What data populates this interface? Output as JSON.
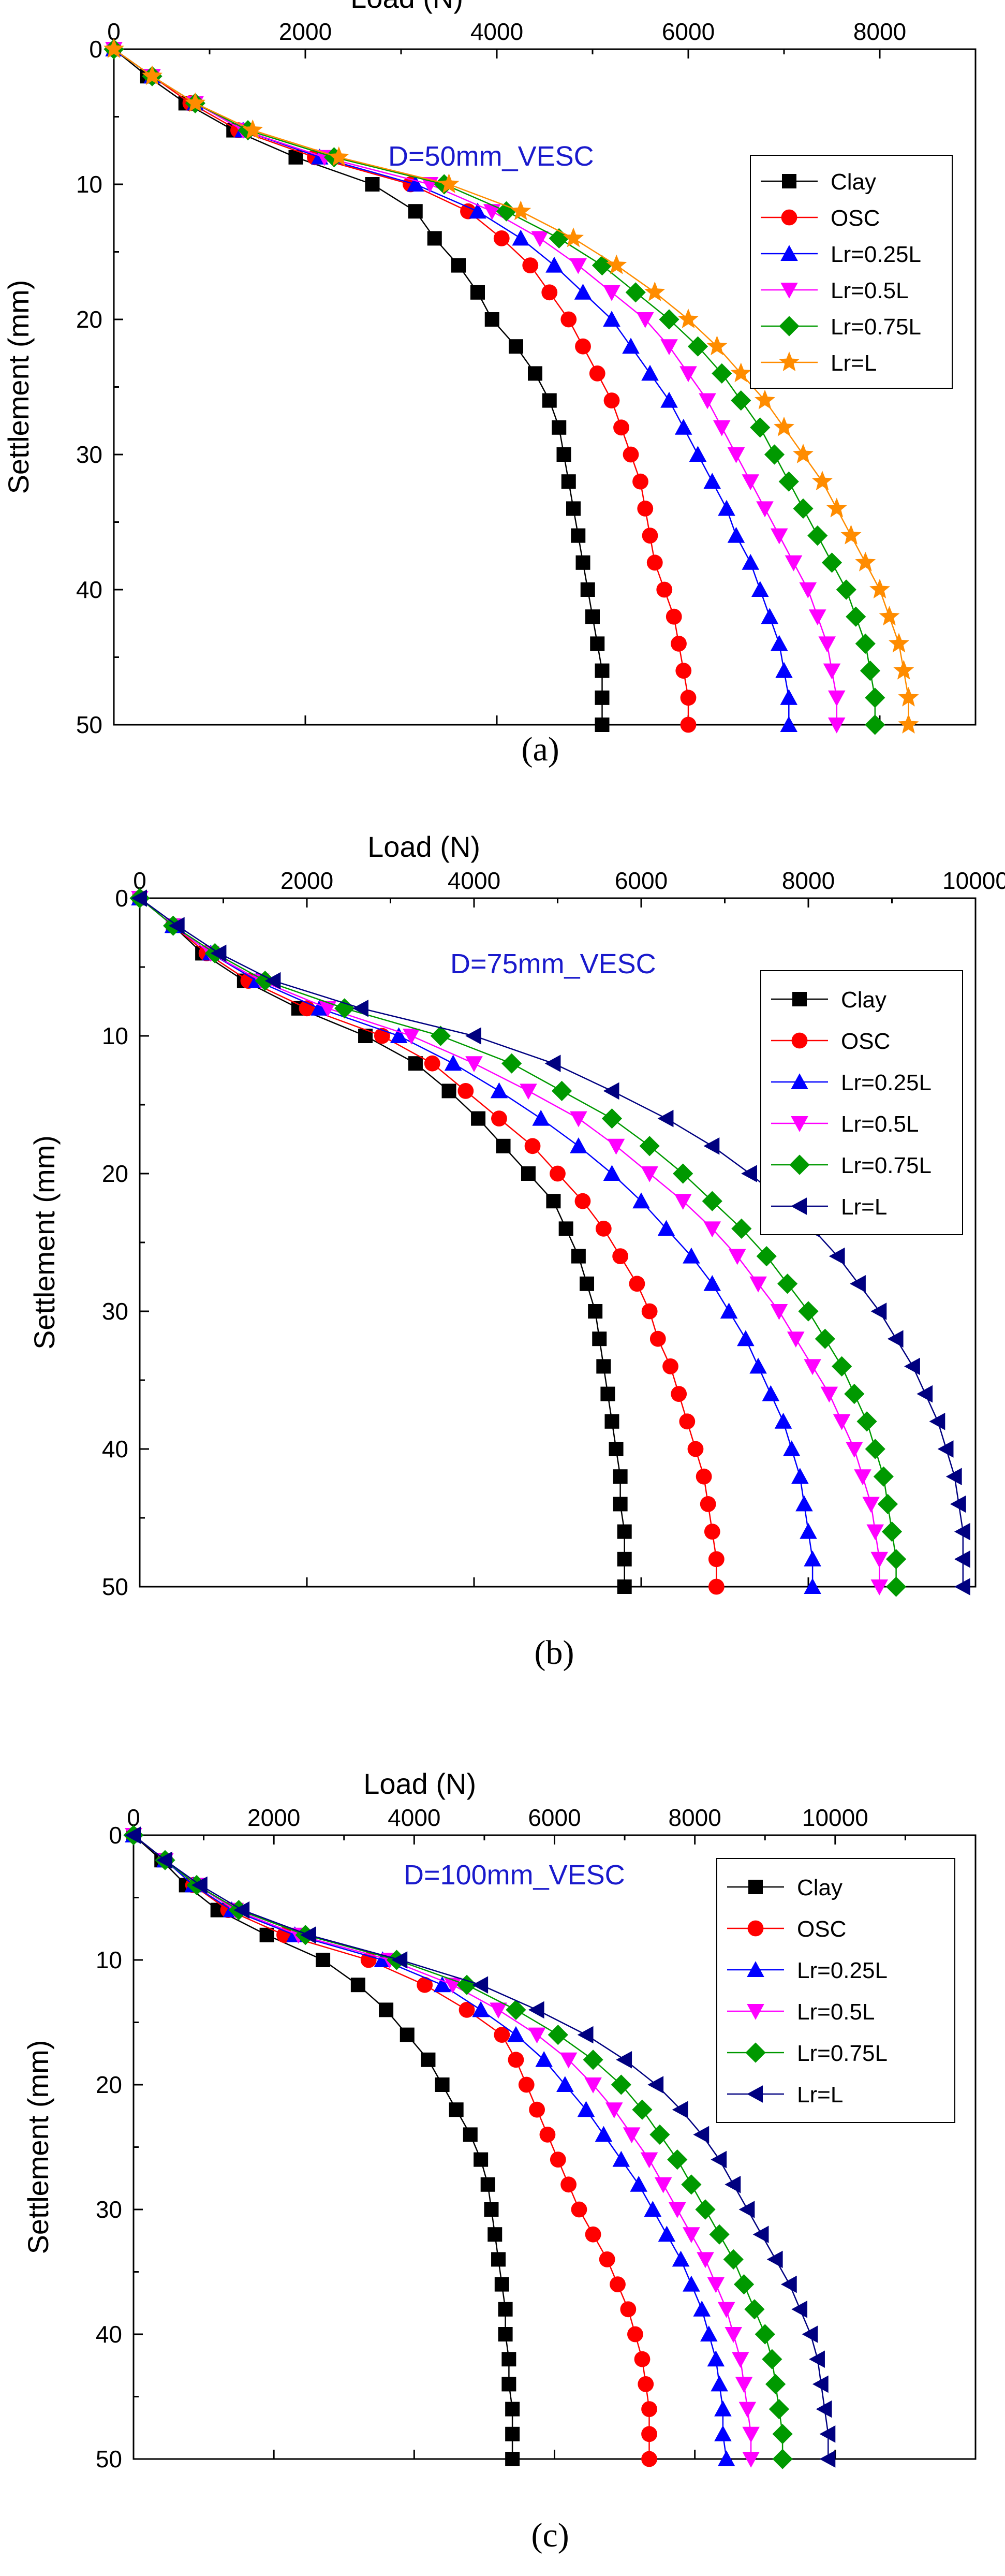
{
  "chart_data": [
    {
      "type": "line",
      "panel_label": "(a)",
      "xlabel": "Load (N)",
      "ylabel": "Settlement (mm)",
      "annotation": "D=50mm_VESC",
      "xlim": [
        0,
        9000
      ],
      "ylim": [
        0,
        50
      ],
      "xticks": [
        0,
        2000,
        4000,
        6000,
        8000
      ],
      "yticks": [
        0,
        10,
        20,
        30,
        40,
        50
      ],
      "x_axis_position": "top",
      "y_inverted": true,
      "legend_position": "top-right",
      "y": [
        0,
        2,
        4,
        6,
        8,
        10,
        12,
        14,
        16,
        18,
        20,
        22,
        24,
        26,
        28,
        30,
        32,
        34,
        36,
        38,
        40,
        42,
        44,
        46,
        48,
        50
      ],
      "series": [
        {
          "name": "Clay",
          "color": "#000000",
          "marker": "square",
          "x": [
            0,
            350,
            750,
            1250,
            1900,
            2700,
            3150,
            3350,
            3600,
            3800,
            3950,
            4200,
            4400,
            4550,
            4650,
            4700,
            4750,
            4800,
            4850,
            4900,
            4950,
            5000,
            5050,
            5100,
            5100,
            5100
          ]
        },
        {
          "name": "OSC",
          "color": "#ff0000",
          "marker": "circle",
          "x": [
            0,
            400,
            800,
            1300,
            2100,
            3100,
            3700,
            4050,
            4350,
            4550,
            4750,
            4900,
            5050,
            5200,
            5300,
            5400,
            5500,
            5550,
            5600,
            5650,
            5750,
            5850,
            5900,
            5950,
            6000,
            6000
          ]
        },
        {
          "name": "Lr=0.25L",
          "color": "#0000ff",
          "marker": "triangle-up",
          "x": [
            0,
            400,
            850,
            1350,
            2150,
            3150,
            3800,
            4250,
            4600,
            4900,
            5200,
            5400,
            5600,
            5800,
            5950,
            6100,
            6250,
            6400,
            6500,
            6650,
            6750,
            6850,
            6950,
            7000,
            7050,
            7050
          ]
        },
        {
          "name": "Lr=0.5L",
          "color": "#ff00ff",
          "marker": "triangle-down",
          "x": [
            0,
            400,
            850,
            1350,
            2200,
            3300,
            3950,
            4450,
            4850,
            5200,
            5550,
            5800,
            6000,
            6200,
            6350,
            6500,
            6650,
            6800,
            6950,
            7100,
            7250,
            7350,
            7450,
            7500,
            7550,
            7550
          ]
        },
        {
          "name": "Lr=0.75L",
          "color": "#009900",
          "marker": "diamond",
          "x": [
            0,
            400,
            850,
            1400,
            2300,
            3450,
            4100,
            4650,
            5100,
            5450,
            5800,
            6100,
            6350,
            6550,
            6750,
            6900,
            7050,
            7200,
            7350,
            7500,
            7650,
            7750,
            7850,
            7900,
            7950,
            7950
          ]
        },
        {
          "name": "Lr=L",
          "color": "#ff8c00",
          "marker": "star",
          "x": [
            0,
            400,
            850,
            1450,
            2350,
            3500,
            4250,
            4800,
            5250,
            5650,
            6000,
            6300,
            6550,
            6800,
            7000,
            7200,
            7400,
            7550,
            7700,
            7850,
            8000,
            8100,
            8200,
            8250,
            8300,
            8300
          ]
        }
      ]
    },
    {
      "type": "line",
      "panel_label": "(b)",
      "xlabel": "Load (N)",
      "ylabel": "Settlement (mm)",
      "annotation": "D=75mm_VESC",
      "xlim": [
        0,
        10000
      ],
      "ylim": [
        0,
        50
      ],
      "xticks": [
        0,
        2000,
        4000,
        6000,
        8000,
        10000
      ],
      "yticks": [
        0,
        10,
        20,
        30,
        40,
        50
      ],
      "x_axis_position": "top",
      "y_inverted": true,
      "legend_position": "top-right",
      "y": [
        0,
        2,
        4,
        6,
        8,
        10,
        12,
        14,
        16,
        18,
        20,
        22,
        24,
        26,
        28,
        30,
        32,
        34,
        36,
        38,
        40,
        42,
        44,
        46,
        48,
        50
      ],
      "series": [
        {
          "name": "Clay",
          "color": "#000000",
          "marker": "square",
          "x": [
            0,
            400,
            750,
            1250,
            1900,
            2700,
            3300,
            3700,
            4050,
            4350,
            4650,
            4950,
            5100,
            5250,
            5350,
            5450,
            5500,
            5550,
            5600,
            5650,
            5700,
            5750,
            5750,
            5800,
            5800,
            5800
          ]
        },
        {
          "name": "OSC",
          "color": "#ff0000",
          "marker": "circle",
          "x": [
            0,
            400,
            800,
            1300,
            2000,
            2900,
            3500,
            3900,
            4300,
            4700,
            5000,
            5300,
            5550,
            5750,
            5950,
            6100,
            6200,
            6350,
            6450,
            6550,
            6650,
            6750,
            6800,
            6850,
            6900,
            6900
          ]
        },
        {
          "name": "Lr=0.25L",
          "color": "#0000ff",
          "marker": "triangle-up",
          "x": [
            0,
            400,
            850,
            1400,
            2150,
            3100,
            3750,
            4300,
            4800,
            5250,
            5650,
            6000,
            6300,
            6600,
            6850,
            7050,
            7250,
            7400,
            7550,
            7700,
            7800,
            7900,
            7950,
            8000,
            8050,
            8050
          ]
        },
        {
          "name": "Lr=0.5L",
          "color": "#ff00ff",
          "marker": "triangle-down",
          "x": [
            0,
            400,
            850,
            1450,
            2250,
            3250,
            4000,
            4650,
            5250,
            5700,
            6100,
            6500,
            6850,
            7150,
            7400,
            7650,
            7850,
            8050,
            8250,
            8400,
            8550,
            8650,
            8750,
            8800,
            8850,
            8850
          ]
        },
        {
          "name": "Lr=0.75L",
          "color": "#009900",
          "marker": "diamond",
          "x": [
            0,
            400,
            900,
            1500,
            2450,
            3600,
            4450,
            5050,
            5650,
            6100,
            6500,
            6850,
            7200,
            7500,
            7750,
            8000,
            8200,
            8400,
            8550,
            8700,
            8800,
            8900,
            8950,
            9000,
            9050,
            9050
          ]
        },
        {
          "name": "Lr=L",
          "color": "#000080",
          "marker": "triangle-left",
          "x": [
            0,
            450,
            950,
            1600,
            2650,
            4000,
            4950,
            5650,
            6300,
            6850,
            7300,
            7700,
            8050,
            8350,
            8600,
            8850,
            9050,
            9250,
            9400,
            9550,
            9650,
            9750,
            9800,
            9850,
            9850,
            9850
          ]
        }
      ]
    },
    {
      "type": "line",
      "panel_label": "(c)",
      "xlabel": "Load (N)",
      "ylabel": "Settlement (mm)",
      "annotation": "D=100mm_VESC",
      "xlim": [
        0,
        12000
      ],
      "ylim": [
        0,
        50
      ],
      "xticks": [
        0,
        2000,
        4000,
        6000,
        8000,
        10000
      ],
      "yticks": [
        0,
        10,
        20,
        30,
        40,
        50
      ],
      "x_axis_position": "top",
      "y_inverted": true,
      "legend_position": "top-right",
      "y": [
        0,
        2,
        4,
        6,
        8,
        10,
        12,
        14,
        16,
        18,
        20,
        22,
        24,
        26,
        28,
        30,
        32,
        34,
        36,
        38,
        40,
        42,
        44,
        46,
        48,
        50
      ],
      "series": [
        {
          "name": "Clay",
          "color": "#000000",
          "marker": "square",
          "x": [
            0,
            400,
            750,
            1200,
            1900,
            2700,
            3200,
            3600,
            3900,
            4200,
            4400,
            4600,
            4800,
            4950,
            5050,
            5100,
            5150,
            5200,
            5250,
            5300,
            5300,
            5350,
            5350,
            5400,
            5400,
            5400
          ]
        },
        {
          "name": "OSC",
          "color": "#ff0000",
          "marker": "circle",
          "x": [
            0,
            450,
            850,
            1350,
            2150,
            3350,
            4150,
            4750,
            5250,
            5450,
            5600,
            5750,
            5900,
            6050,
            6200,
            6350,
            6550,
            6750,
            6900,
            7050,
            7150,
            7250,
            7300,
            7350,
            7350,
            7350
          ]
        },
        {
          "name": "Lr=0.25L",
          "color": "#0000ff",
          "marker": "triangle-up",
          "x": [
            0,
            450,
            850,
            1400,
            2300,
            3550,
            4400,
            4950,
            5450,
            5850,
            6150,
            6450,
            6700,
            6950,
            7200,
            7400,
            7600,
            7800,
            7950,
            8100,
            8200,
            8300,
            8350,
            8400,
            8400,
            8450
          ]
        },
        {
          "name": "Lr=0.5L",
          "color": "#ff00ff",
          "marker": "triangle-down",
          "x": [
            0,
            450,
            900,
            1450,
            2350,
            3650,
            4550,
            5200,
            5750,
            6200,
            6550,
            6850,
            7100,
            7350,
            7550,
            7750,
            7950,
            8150,
            8300,
            8450,
            8550,
            8650,
            8700,
            8750,
            8800,
            8800
          ]
        },
        {
          "name": "Lr=0.75L",
          "color": "#009900",
          "marker": "diamond",
          "x": [
            0,
            450,
            900,
            1500,
            2450,
            3750,
            4750,
            5450,
            6050,
            6550,
            6950,
            7250,
            7500,
            7750,
            7950,
            8150,
            8350,
            8550,
            8700,
            8850,
            9000,
            9100,
            9150,
            9200,
            9250,
            9250
          ]
        },
        {
          "name": "Lr=L",
          "color": "#000080",
          "marker": "triangle-left",
          "x": [
            0,
            450,
            950,
            1550,
            2500,
            3800,
            4950,
            5750,
            6450,
            7000,
            7450,
            7800,
            8100,
            8350,
            8550,
            8750,
            8950,
            9150,
            9350,
            9500,
            9650,
            9750,
            9800,
            9850,
            9900,
            9900
          ]
        }
      ]
    }
  ]
}
